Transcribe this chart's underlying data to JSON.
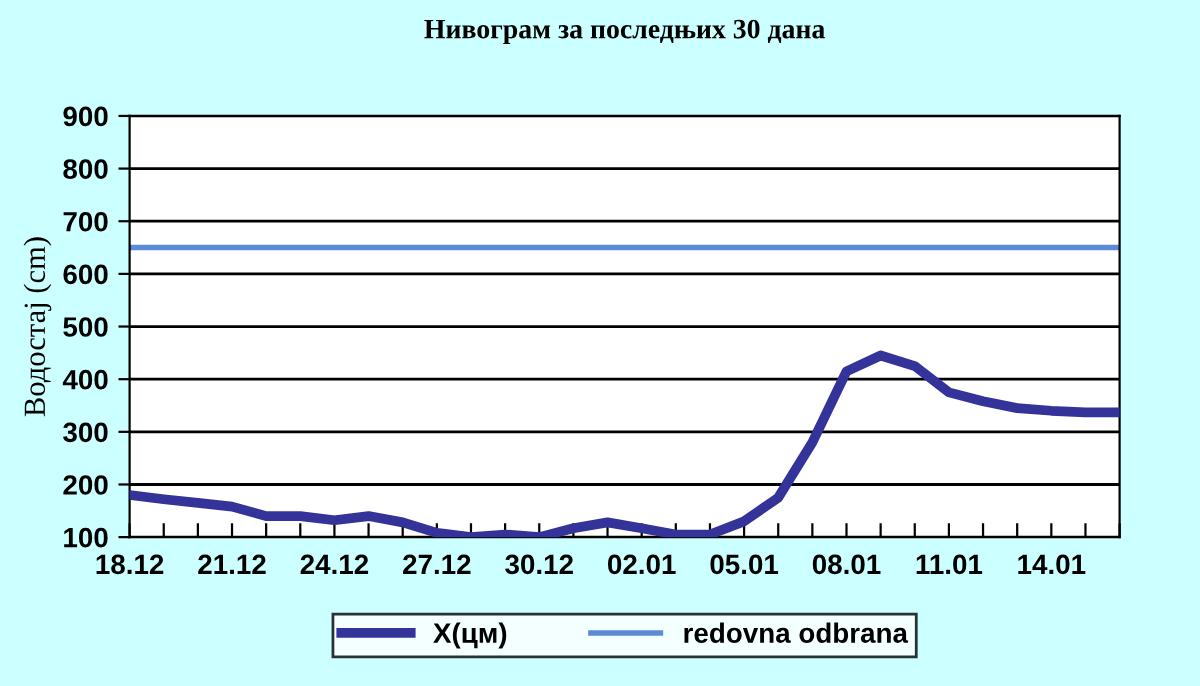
{
  "chart_data": {
    "type": "line",
    "title": "Нивограм за последњих 30 дана",
    "ylabel": "Водостај (cm)",
    "categories": [
      "18.12",
      null,
      null,
      "21.12",
      null,
      null,
      "24.12",
      null,
      null,
      "27.12",
      null,
      null,
      "30.12",
      null,
      null,
      "02.01",
      null,
      null,
      "05.01",
      null,
      null,
      "08.01",
      null,
      null,
      "11.01",
      null,
      null,
      "14.01",
      null,
      null
    ],
    "series": [
      {
        "name": "X(цм)",
        "color": "#333399",
        "values": [
          180,
          172,
          165,
          158,
          140,
          140,
          132,
          140,
          128,
          108,
          100,
          105,
          100,
          117,
          128,
          117,
          105,
          105,
          130,
          175,
          280,
          415,
          445,
          425,
          375,
          358,
          345,
          340,
          337,
          337
        ]
      }
    ],
    "ref_lines": [
      {
        "axis": "y",
        "value": 650,
        "label": "redovna odbrana",
        "color": "#5b8bd6"
      }
    ],
    "ylim": [
      100,
      900
    ],
    "yticks": [
      100,
      200,
      300,
      400,
      500,
      600,
      700,
      800,
      900
    ],
    "grid": "y",
    "legend": "bottom",
    "marker": "none",
    "line_style": "solid"
  }
}
